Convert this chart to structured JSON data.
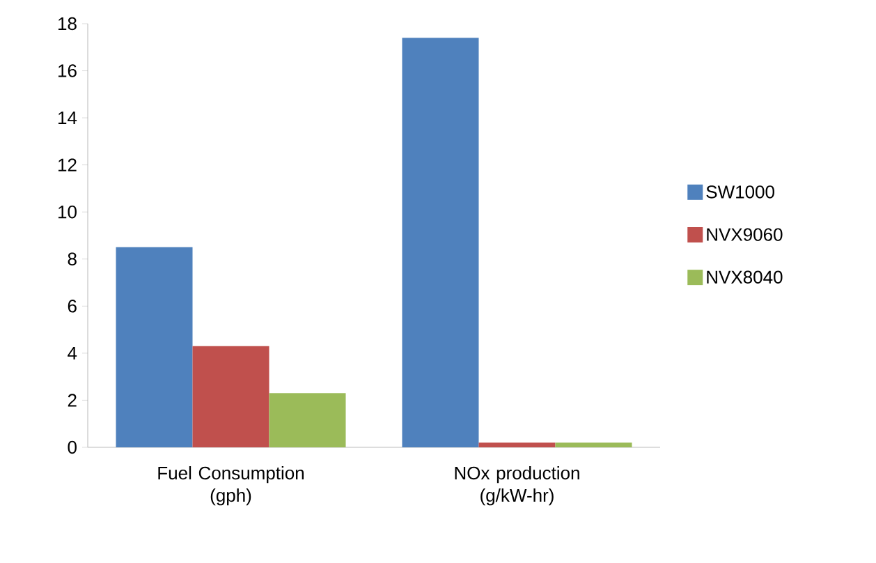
{
  "chart_data": {
    "type": "bar",
    "categories": [
      "Fuel Consumption (gph)",
      "NOx production (g/kW-hr)"
    ],
    "series": [
      {
        "name": "SW1000",
        "color": "#4f81bd",
        "values": [
          8.5,
          17.4
        ]
      },
      {
        "name": "NVX9060",
        "color": "#c0504d",
        "values": [
          4.3,
          0.2
        ]
      },
      {
        "name": "NVX8040",
        "color": "#9bbb59",
        "values": [
          2.3,
          0.2
        ]
      }
    ],
    "ylim": [
      0,
      18
    ],
    "yticks": [
      0,
      2,
      4,
      6,
      8,
      10,
      12,
      14,
      16,
      18
    ],
    "grid": false,
    "legend": "right"
  }
}
